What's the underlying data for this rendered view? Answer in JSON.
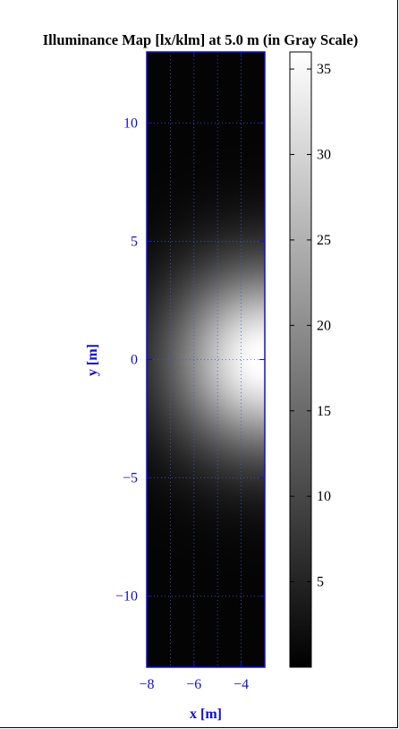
{
  "chart_data": {
    "type": "heatmap",
    "title": "Illuminance Map [lx/klm] at 5.0 m (in Gray Scale)",
    "xlabel": "x [m]",
    "ylabel": "y [m]",
    "xlim": [
      -8,
      -3
    ],
    "ylim": [
      -13,
      13
    ],
    "x_ticks": [
      "−8",
      "−6",
      "−4"
    ],
    "x_tick_values": [
      -8,
      -6,
      -4
    ],
    "y_ticks": [
      "10",
      "5",
      "0",
      "−5",
      "−10"
    ],
    "y_tick_values": [
      10,
      5,
      0,
      -5,
      -10
    ],
    "colorbar": {
      "colormap": "gray",
      "range": [
        0,
        36
      ],
      "ticks": [
        "35",
        "30",
        "25",
        "20",
        "15",
        "10",
        "5"
      ],
      "tick_values": [
        35,
        30,
        25,
        20,
        15,
        10,
        5
      ]
    },
    "field": {
      "peak_value": 36,
      "peak_location": {
        "x": -3,
        "y": 0
      },
      "background_value": 0.5
    },
    "grid": true
  },
  "colors": {
    "axis_blue": "#1010d0",
    "grid": "#3a5fcd"
  }
}
